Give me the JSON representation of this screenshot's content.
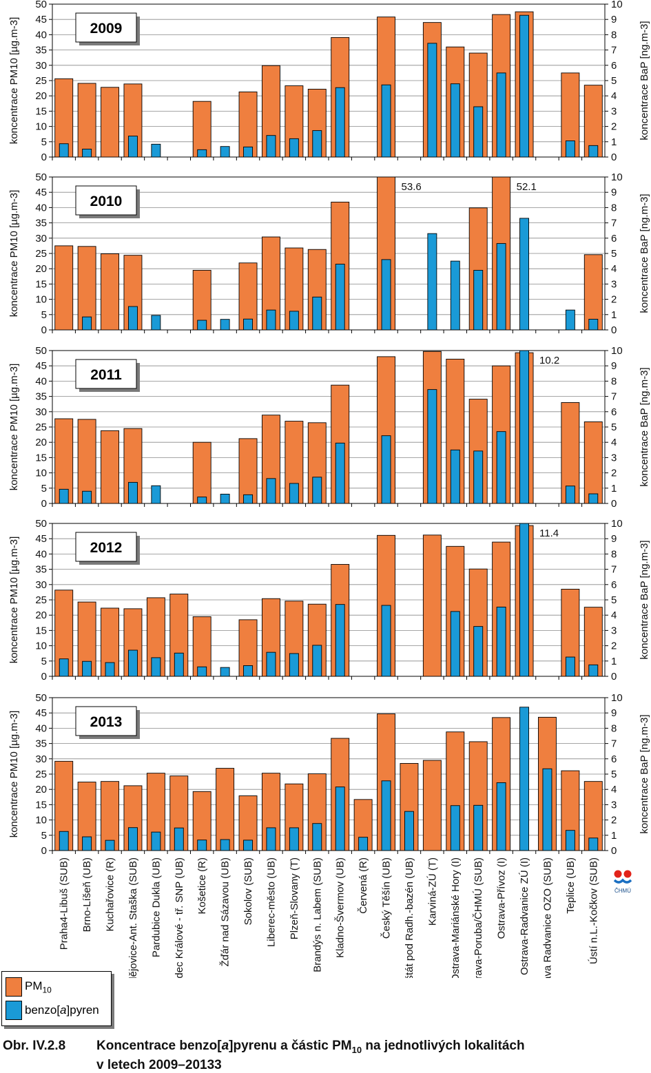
{
  "chart_data": {
    "type": "bar",
    "categories": [
      "Praha4-Libuš (SUB)",
      "Brno-Líšeň (UB)",
      "Kuchařovice (R)",
      "Č.Budějovice-Ant. Staška (SUB)",
      "Pardubice Dukla (UB)",
      "Hradec Králové - tř. SNP (UB)",
      "Košetice (R)",
      "Žďár nad Sázavou (UB)",
      "Sokolov (SUB)",
      "Liberec-město (UB)",
      "Plzeň-Slovany (T)",
      "Brandýs n. Labem (SUB)",
      "Kladno-Švermov (UB)",
      "Červená (R)",
      "Český Těšín (UB)",
      "Frenštát pod Radh.-bazén (UB)",
      "Karviná-ZÚ (T)",
      "Ostrava-Mariánské Hory (I)",
      "Ostrava-Poruba/ČHMÚ (SUB)",
      "Ostrava-Přívoz (I)",
      "Ostrava-Radvanice ZÚ (I)",
      "Ostrava Radvanice OZO (SUB)",
      "Teplice  (UB)",
      "Ústí n.L.-Kočkov (SUB)"
    ],
    "ylabel": "koncentrace PM10 [µg.m-3]",
    "y2label": "koncentrace BaP [ng.m-3]",
    "ylim": [
      0,
      50
    ],
    "y2lim": [
      0,
      10
    ],
    "yticks": [
      "0",
      "5",
      "10",
      "15",
      "20",
      "25",
      "30",
      "35",
      "40",
      "45",
      "50"
    ],
    "y2ticks": [
      "0",
      "1",
      "2",
      "3",
      "4",
      "5",
      "6",
      "7",
      "8",
      "9",
      "10"
    ],
    "grid": true,
    "panels": [
      {
        "year": "2009",
        "pm10": [
          25.6,
          24.1,
          22.8,
          23.9,
          null,
          null,
          18.2,
          null,
          21.3,
          29.9,
          23.3,
          22.2,
          39.1,
          null,
          45.8,
          null,
          44.0,
          36.0,
          34.0,
          46.6,
          47.5,
          null,
          27.5,
          23.5
        ],
        "bap": [
          0.87,
          0.52,
          null,
          1.37,
          0.84,
          null,
          0.48,
          0.69,
          0.66,
          1.41,
          1.2,
          1.73,
          4.54,
          null,
          4.72,
          null,
          7.44,
          4.79,
          3.29,
          5.5,
          9.27,
          null,
          1.06,
          0.75
        ]
      },
      {
        "year": "2010",
        "pm10": [
          27.5,
          27.3,
          24.9,
          24.4,
          null,
          null,
          19.5,
          null,
          21.9,
          30.4,
          26.8,
          26.3,
          41.8,
          null,
          53.6,
          null,
          null,
          null,
          39.9,
          52.1,
          null,
          null,
          null,
          24.6
        ],
        "bap": [
          null,
          0.85,
          null,
          1.53,
          0.95,
          null,
          0.63,
          0.69,
          0.71,
          1.3,
          1.22,
          2.15,
          4.3,
          null,
          4.6,
          null,
          6.3,
          4.5,
          3.9,
          5.65,
          7.3,
          null,
          1.3,
          0.7
        ],
        "labels": [
          {
            "cat": 14,
            "text": "53.6"
          },
          {
            "cat": 19,
            "text": "52.1"
          }
        ]
      },
      {
        "year": "2011",
        "pm10": [
          27.7,
          27.5,
          23.8,
          24.5,
          null,
          null,
          20.0,
          null,
          21.2,
          28.9,
          26.9,
          26.4,
          38.7,
          null,
          48.0,
          null,
          49.7,
          47.2,
          34.1,
          45.0,
          49.3,
          null,
          33.0,
          26.7
        ],
        "bap": [
          0.93,
          0.8,
          null,
          1.38,
          1.16,
          null,
          0.42,
          0.61,
          0.57,
          1.63,
          1.31,
          1.72,
          3.95,
          null,
          4.43,
          null,
          7.45,
          3.5,
          3.43,
          4.7,
          10.2,
          null,
          1.14,
          0.63
        ],
        "labels": [
          {
            "cat": 20,
            "text": "10.2"
          }
        ]
      },
      {
        "year": "2012",
        "pm10": [
          28.2,
          24.3,
          22.3,
          22.1,
          25.7,
          26.9,
          19.5,
          null,
          18.5,
          25.4,
          24.6,
          23.6,
          36.6,
          null,
          46.1,
          null,
          46.2,
          42.5,
          35.1,
          43.9,
          49.3,
          null,
          28.5,
          22.6
        ],
        "bap": [
          1.14,
          0.98,
          0.9,
          1.71,
          1.22,
          1.52,
          0.62,
          0.58,
          0.7,
          1.57,
          1.49,
          2.03,
          4.7,
          null,
          4.64,
          null,
          null,
          4.24,
          3.26,
          4.53,
          11.4,
          null,
          1.26,
          0.75
        ],
        "labels": [
          {
            "cat": 20,
            "text": "11.4"
          }
        ]
      },
      {
        "year": "2013",
        "pm10": [
          29.2,
          22.4,
          22.6,
          21.2,
          25.3,
          24.4,
          19.3,
          26.9,
          17.9,
          25.3,
          21.8,
          25.1,
          36.7,
          16.7,
          44.7,
          28.5,
          29.5,
          38.8,
          35.6,
          43.5,
          null,
          43.6,
          26.1,
          22.6
        ],
        "bap": [
          1.25,
          0.9,
          0.67,
          1.5,
          1.21,
          1.48,
          0.69,
          0.72,
          0.68,
          1.49,
          1.49,
          1.77,
          4.16,
          0.87,
          4.56,
          2.56,
          null,
          2.94,
          2.96,
          4.44,
          9.38,
          5.35,
          1.32,
          0.82
        ]
      }
    ]
  },
  "legend": {
    "pm10": "PM10",
    "bap": "benzo[a]pyren"
  },
  "caption": {
    "number": "Obr. IV.2.8",
    "line1": "Koncentrace benzo[a]pyrenu a částic PM10 na jednotlivých lokalitách",
    "line2": "v letech 2009–20133"
  },
  "logo": {
    "text": "ČHMÚ"
  },
  "colors": {
    "pm10": "#ef7f3f",
    "bap": "#1a9ad7",
    "grid": "#888888"
  }
}
